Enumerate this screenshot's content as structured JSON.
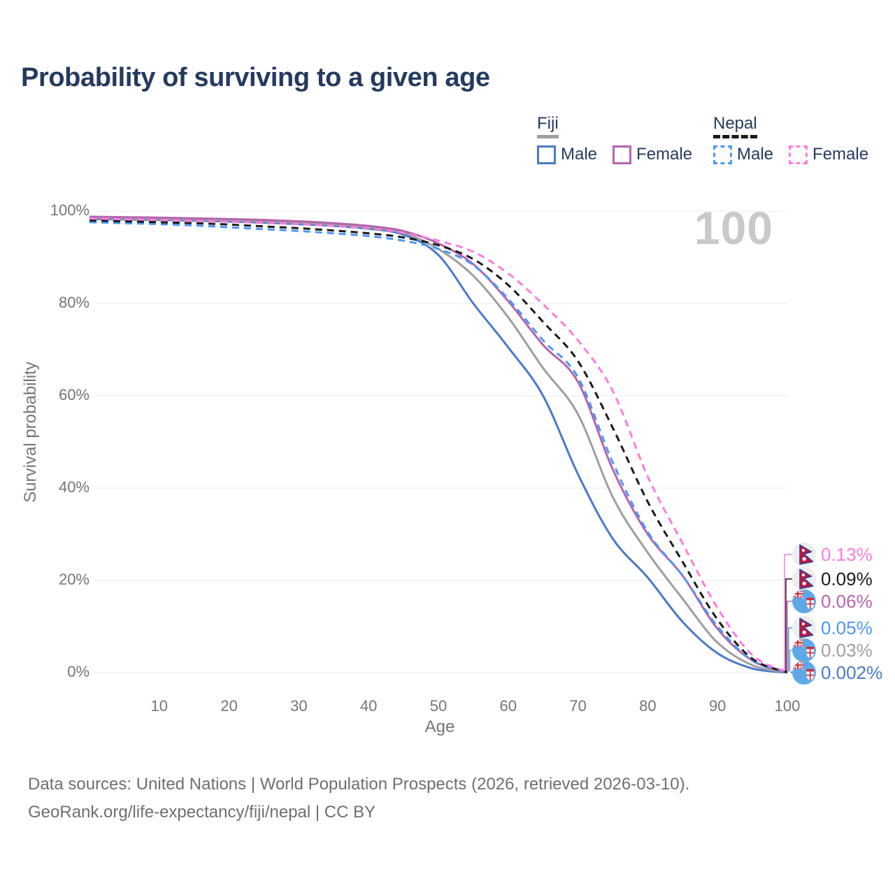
{
  "title": "Probability of surviving to a given age",
  "legend": {
    "fiji": {
      "name": "Fiji",
      "male_label": "Male",
      "female_label": "Female"
    },
    "nepal": {
      "name": "Nepal",
      "male_label": "Male",
      "female_label": "Female"
    }
  },
  "chart_data": {
    "type": "line",
    "title": "Probability of surviving to a given age",
    "xlabel": "Age",
    "ylabel": "Survival probability",
    "xlim": [
      0,
      100
    ],
    "ylim": [
      0,
      100
    ],
    "x_ticks": [
      10,
      20,
      30,
      40,
      50,
      60,
      70,
      80,
      90,
      100
    ],
    "y_tick_labels": [
      "0%",
      "20%",
      "40%",
      "60%",
      "80%",
      "100%"
    ],
    "y_tick_values": [
      0,
      20,
      40,
      60,
      80,
      100
    ],
    "grid": "horizontal",
    "age_annotation": "100",
    "ages": [
      0,
      5,
      10,
      15,
      20,
      25,
      30,
      35,
      40,
      45,
      50,
      55,
      60,
      65,
      70,
      75,
      80,
      85,
      90,
      95,
      100
    ],
    "series": [
      {
        "id": "fiji-male",
        "name": "Fiji Male",
        "country": "fiji",
        "sex": "male",
        "style": "solid",
        "color": "#4a7ac9",
        "end_label": "0.002%",
        "values": [
          98.3,
          98.2,
          98.1,
          97.95,
          97.75,
          97.5,
          97.2,
          96.8,
          96.2,
          94.9,
          90.5,
          80.0,
          70.5,
          60.0,
          43.0,
          29.0,
          20.6,
          11.0,
          4.2,
          0.9,
          0.002
        ]
      },
      {
        "id": "fiji",
        "name": "Fiji",
        "country": "fiji",
        "sex": "both",
        "style": "solid",
        "color": "#9e9e9e",
        "end_label": "0.03%",
        "values": [
          98.5,
          98.4,
          98.3,
          98.15,
          98.0,
          97.8,
          97.5,
          97.1,
          96.5,
          95.3,
          91.8,
          86.0,
          77.0,
          66.0,
          56.0,
          38.0,
          26.0,
          16.0,
          6.5,
          1.6,
          0.03
        ]
      },
      {
        "id": "fiji-female",
        "name": "Fiji Female",
        "country": "fiji",
        "sex": "female",
        "style": "solid",
        "color": "#b564ae",
        "end_label": "0.06%",
        "values": [
          98.8,
          98.7,
          98.6,
          98.45,
          98.3,
          98.1,
          97.8,
          97.4,
          96.8,
          95.7,
          93.0,
          88.5,
          80.5,
          71.0,
          63.0,
          44.0,
          30.0,
          21.0,
          9.5,
          2.6,
          0.06
        ]
      },
      {
        "id": "nepal-male",
        "name": "Nepal Male",
        "country": "nepal",
        "sex": "male",
        "style": "dashed",
        "color": "#4e96f5",
        "end_label": "0.05%",
        "values": [
          97.6,
          97.4,
          97.2,
          96.9,
          96.5,
          96.1,
          95.7,
          95.2,
          94.6,
          93.6,
          91.8,
          88.3,
          81.0,
          72.0,
          64.0,
          45.5,
          30.5,
          21.0,
          10.0,
          2.6,
          0.05
        ]
      },
      {
        "id": "nepal",
        "name": "Nepal",
        "country": "nepal",
        "sex": "both",
        "style": "dashed",
        "color": "#1a1a1a",
        "end_label": "0.09%",
        "values": [
          98.0,
          97.8,
          97.6,
          97.4,
          97.1,
          96.7,
          96.3,
          95.8,
          95.2,
          94.3,
          92.6,
          89.6,
          84.0,
          76.0,
          67.5,
          53.0,
          37.0,
          24.0,
          11.5,
          3.0,
          0.09
        ]
      },
      {
        "id": "nepal-female",
        "name": "Nepal Female",
        "country": "nepal",
        "sex": "female",
        "style": "dashed",
        "color": "#fb7ce1",
        "end_label": "0.13%",
        "values": [
          98.4,
          98.25,
          98.1,
          97.9,
          97.7,
          97.45,
          97.2,
          96.8,
          96.3,
          95.3,
          93.6,
          91.2,
          86.5,
          79.8,
          72.0,
          61.0,
          42.5,
          28.0,
          14.0,
          3.8,
          0.13
        ]
      }
    ],
    "end_labels": [
      {
        "series": "nepal-female",
        "country": "nepal",
        "value": "0.13%",
        "color": "#fb7ce1"
      },
      {
        "series": "nepal",
        "country": "nepal",
        "value": "0.09%",
        "color": "#1a1a1a"
      },
      {
        "series": "fiji-female",
        "country": "fiji",
        "value": "0.06%",
        "color": "#b564ae"
      },
      {
        "series": "nepal-male",
        "country": "nepal",
        "value": "0.05%",
        "color": "#4e96f5"
      },
      {
        "series": "fiji",
        "country": "fiji",
        "value": "0.03%",
        "color": "#9e9e9e"
      },
      {
        "series": "fiji-male",
        "country": "fiji",
        "value": "0.002%",
        "color": "#4a7ac9"
      }
    ],
    "legend_position": "top-right"
  },
  "footer": {
    "line1": "Data sources: United Nations | World Population Prospects (2026, retrieved 2026-03-10).",
    "line2": "GeoRank.org/life-expectancy/fiji/nepal | CC BY"
  }
}
